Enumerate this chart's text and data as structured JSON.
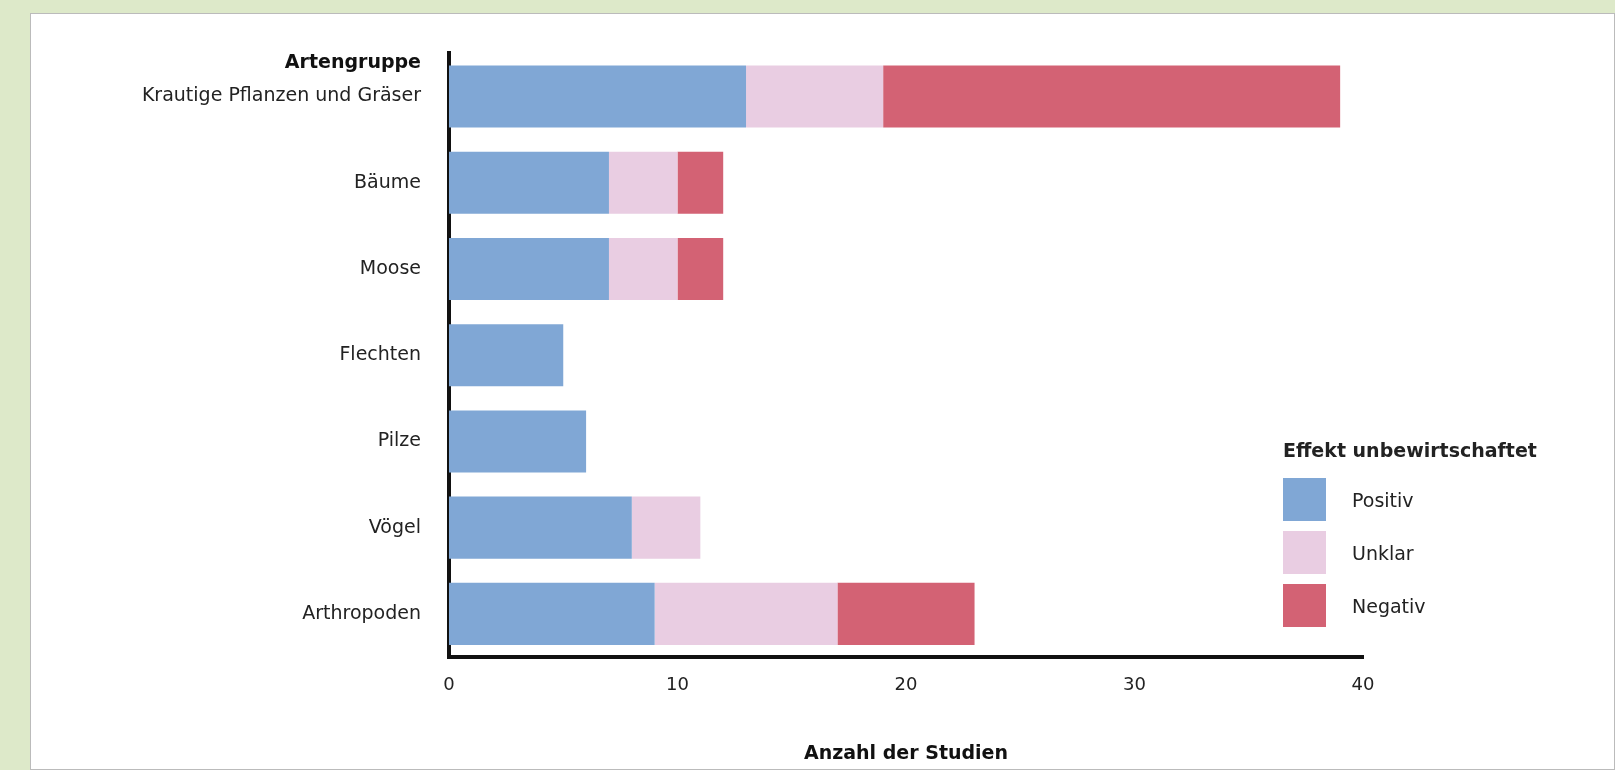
{
  "chart_data": {
    "type": "bar",
    "orientation": "horizontal",
    "stacked": true,
    "ylabel": "Artengruppe",
    "xlabel": "Anzahl der Studien",
    "legend_title": "Effekt unbewirtschaftet",
    "legend": "bottom right",
    "grid": false,
    "categories": [
      "Krautige Pflanzen und Gräser",
      "Bäume",
      "Moose",
      "Flechten",
      "Pilze",
      "Vögel",
      "Arthropoden"
    ],
    "series": [
      {
        "name": "Positiv",
        "color": "#80a7d5",
        "values": [
          13,
          7,
          7,
          5,
          6,
          8,
          9
        ]
      },
      {
        "name": "Unklar",
        "color": "#e9cde2",
        "values": [
          6,
          3,
          3,
          0,
          0,
          3,
          8
        ]
      },
      {
        "name": "Negativ",
        "color": "#d36274",
        "values": [
          20,
          2,
          2,
          0,
          0,
          0,
          6
        ]
      }
    ],
    "xlim": [
      0,
      40
    ],
    "xticks": [
      0,
      10,
      20,
      30,
      40
    ]
  }
}
